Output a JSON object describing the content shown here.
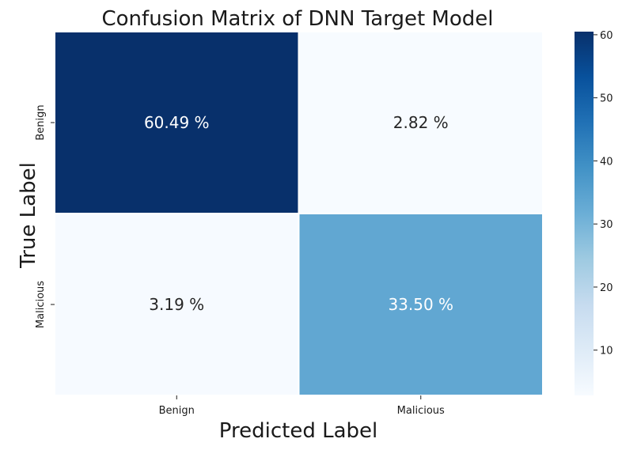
{
  "chart_data": {
    "type": "heatmap",
    "title": "Confusion Matrix of DNN Target Model",
    "xlabel": "Predicted Label",
    "ylabel": "True Label",
    "x_categories": [
      "Benign",
      "Malicious"
    ],
    "y_categories": [
      "Benign",
      "Malicious"
    ],
    "values": [
      [
        60.49,
        2.82
      ],
      [
        3.19,
        33.5
      ]
    ],
    "cell_labels": [
      [
        "60.49 %",
        "2.82 %"
      ],
      [
        "3.19 %",
        "33.50 %"
      ]
    ],
    "colormap": "Blues",
    "colorbar": {
      "range": [
        2.82,
        60.49
      ],
      "ticks": [
        10,
        20,
        30,
        40,
        50,
        60
      ],
      "tick_labels": [
        "10",
        "20",
        "30",
        "40",
        "50",
        "60"
      ]
    },
    "grid": false,
    "colors": {
      "light": "#f7fbff",
      "dark": "#08306b",
      "text_dark": "#262626",
      "text_light": "#ffffff"
    }
  }
}
